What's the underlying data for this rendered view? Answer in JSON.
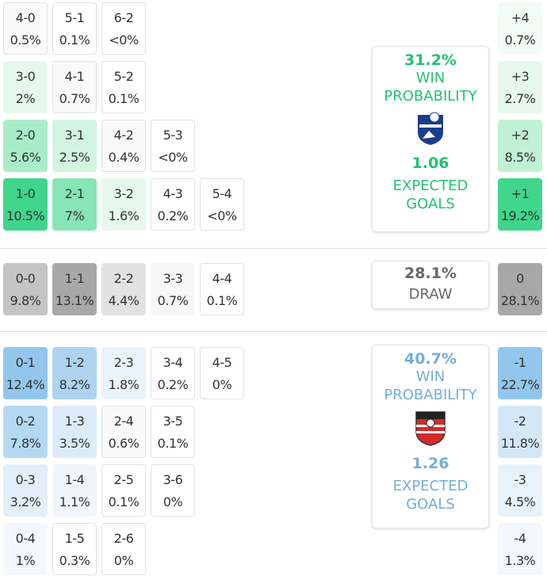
{
  "home": {
    "rows": [
      [
        {
          "score": "4-0",
          "pct": "0.5%",
          "color": "#fafafa"
        },
        {
          "score": "5-1",
          "pct": "0.1%",
          "color": "#ffffff"
        },
        {
          "score": "6-2",
          "pct": "<0%",
          "color": "#ffffff"
        }
      ],
      [
        {
          "score": "3-0",
          "pct": "2%",
          "color": "#e6f8ee"
        },
        {
          "score": "4-1",
          "pct": "0.7%",
          "color": "#fafafa"
        },
        {
          "score": "5-2",
          "pct": "0.1%",
          "color": "#ffffff"
        }
      ],
      [
        {
          "score": "2-0",
          "pct": "5.6%",
          "color": "#a9edc8"
        },
        {
          "score": "3-1",
          "pct": "2.5%",
          "color": "#d2f4e1"
        },
        {
          "score": "4-2",
          "pct": "0.4%",
          "color": "#fafafa"
        },
        {
          "score": "5-3",
          "pct": "<0%",
          "color": "#ffffff"
        }
      ],
      [
        {
          "score": "1-0",
          "pct": "10.5%",
          "color": "#3fd68c"
        },
        {
          "score": "2-1",
          "pct": "7%",
          "color": "#86e5b4"
        },
        {
          "score": "3-2",
          "pct": "1.6%",
          "color": "#e6f8ee"
        },
        {
          "score": "4-3",
          "pct": "0.2%",
          "color": "#ffffff"
        },
        {
          "score": "5-4",
          "pct": "<0%",
          "color": "#ffffff"
        }
      ]
    ],
    "margins": [
      {
        "score": "+4",
        "pct": "0.7%",
        "color": "#f3fbf6"
      },
      {
        "score": "+3",
        "pct": "2.7%",
        "color": "#e6f8ee"
      },
      {
        "score": "+2",
        "pct": "8.5%",
        "color": "#c0f0d5"
      },
      {
        "score": "+1",
        "pct": "19.2%",
        "color": "#3fd68c"
      }
    ],
    "panel": {
      "probability": "31.2%",
      "label": "WIN PROBABILITY",
      "xg": "1.06",
      "xg_label": "EXPECTED GOALS",
      "color": "#20c46e"
    }
  },
  "draw": {
    "row": [
      {
        "score": "0-0",
        "pct": "9.8%",
        "color": "#c4c4c4"
      },
      {
        "score": "1-1",
        "pct": "13.1%",
        "color": "#a8a8a8"
      },
      {
        "score": "2-2",
        "pct": "4.4%",
        "color": "#e2e2e2"
      },
      {
        "score": "3-3",
        "pct": "0.7%",
        "color": "#f7f7f7"
      },
      {
        "score": "4-4",
        "pct": "0.1%",
        "color": "#ffffff"
      }
    ],
    "margin": {
      "score": "0",
      "pct": "28.1%",
      "color": "#a8a8a8"
    },
    "panel": {
      "probability": "28.1%",
      "label": "DRAW",
      "color": "#666666"
    }
  },
  "away": {
    "rows": [
      [
        {
          "score": "0-1",
          "pct": "12.4%",
          "color": "#92c6ec"
        },
        {
          "score": "1-2",
          "pct": "8.2%",
          "color": "#aed3f0"
        },
        {
          "score": "2-3",
          "pct": "1.8%",
          "color": "#eaf3fb"
        },
        {
          "score": "3-4",
          "pct": "0.2%",
          "color": "#ffffff"
        },
        {
          "score": "4-5",
          "pct": "0%",
          "color": "#ffffff"
        }
      ],
      [
        {
          "score": "0-2",
          "pct": "7.8%",
          "color": "#b5d8f2"
        },
        {
          "score": "1-3",
          "pct": "3.5%",
          "color": "#dcebf8"
        },
        {
          "score": "2-4",
          "pct": "0.6%",
          "color": "#fafafa"
        },
        {
          "score": "3-5",
          "pct": "0.1%",
          "color": "#ffffff"
        }
      ],
      [
        {
          "score": "0-3",
          "pct": "3.2%",
          "color": "#e2eef9"
        },
        {
          "score": "1-4",
          "pct": "1.1%",
          "color": "#f1f6fc"
        },
        {
          "score": "2-5",
          "pct": "0.1%",
          "color": "#ffffff"
        },
        {
          "score": "3-6",
          "pct": "0%",
          "color": "#ffffff"
        }
      ],
      [
        {
          "score": "0-4",
          "pct": "1%",
          "color": "#f4f8fc"
        },
        {
          "score": "1-5",
          "pct": "0.3%",
          "color": "#ffffff"
        },
        {
          "score": "2-6",
          "pct": "0%",
          "color": "#ffffff"
        }
      ]
    ],
    "margins": [
      {
        "score": "-1",
        "pct": "22.7%",
        "color": "#92c6ec"
      },
      {
        "score": "-2",
        "pct": "11.8%",
        "color": "#d4e7f7"
      },
      {
        "score": "-3",
        "pct": "4.5%",
        "color": "#e8f2fb"
      },
      {
        "score": "-4",
        "pct": "1.3%",
        "color": "#f4f8fc"
      }
    ],
    "panel": {
      "probability": "40.7%",
      "label": "WIN PROBABILITY",
      "xg": "1.26",
      "xg_label": "EXPECTED GOALS",
      "color": "#72aedb"
    }
  }
}
